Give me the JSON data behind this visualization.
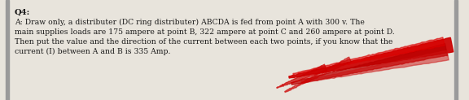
{
  "title": "Q4:",
  "body_lines": [
    "A: Draw only, a distributer (DC ring distributer) ABCDA is fed from point A with 300 v. The",
    "main supplies loads are 175 ampere at point B, 322 ampere at point C and 260 ampere at point D.",
    "Then put the value and the direction of the current between each two points, if you know that the",
    "current (I) between A and B is 335 Amp."
  ],
  "bg_color": "#e8e4dc",
  "text_color": "#1a1a1a",
  "left_bar_color": "#9a9a9a",
  "right_bar_color": "#9a9a9a",
  "title_fontsize": 7.2,
  "body_fontsize": 6.7,
  "fig_width": 5.76,
  "fig_height": 1.23,
  "dpi": 100
}
